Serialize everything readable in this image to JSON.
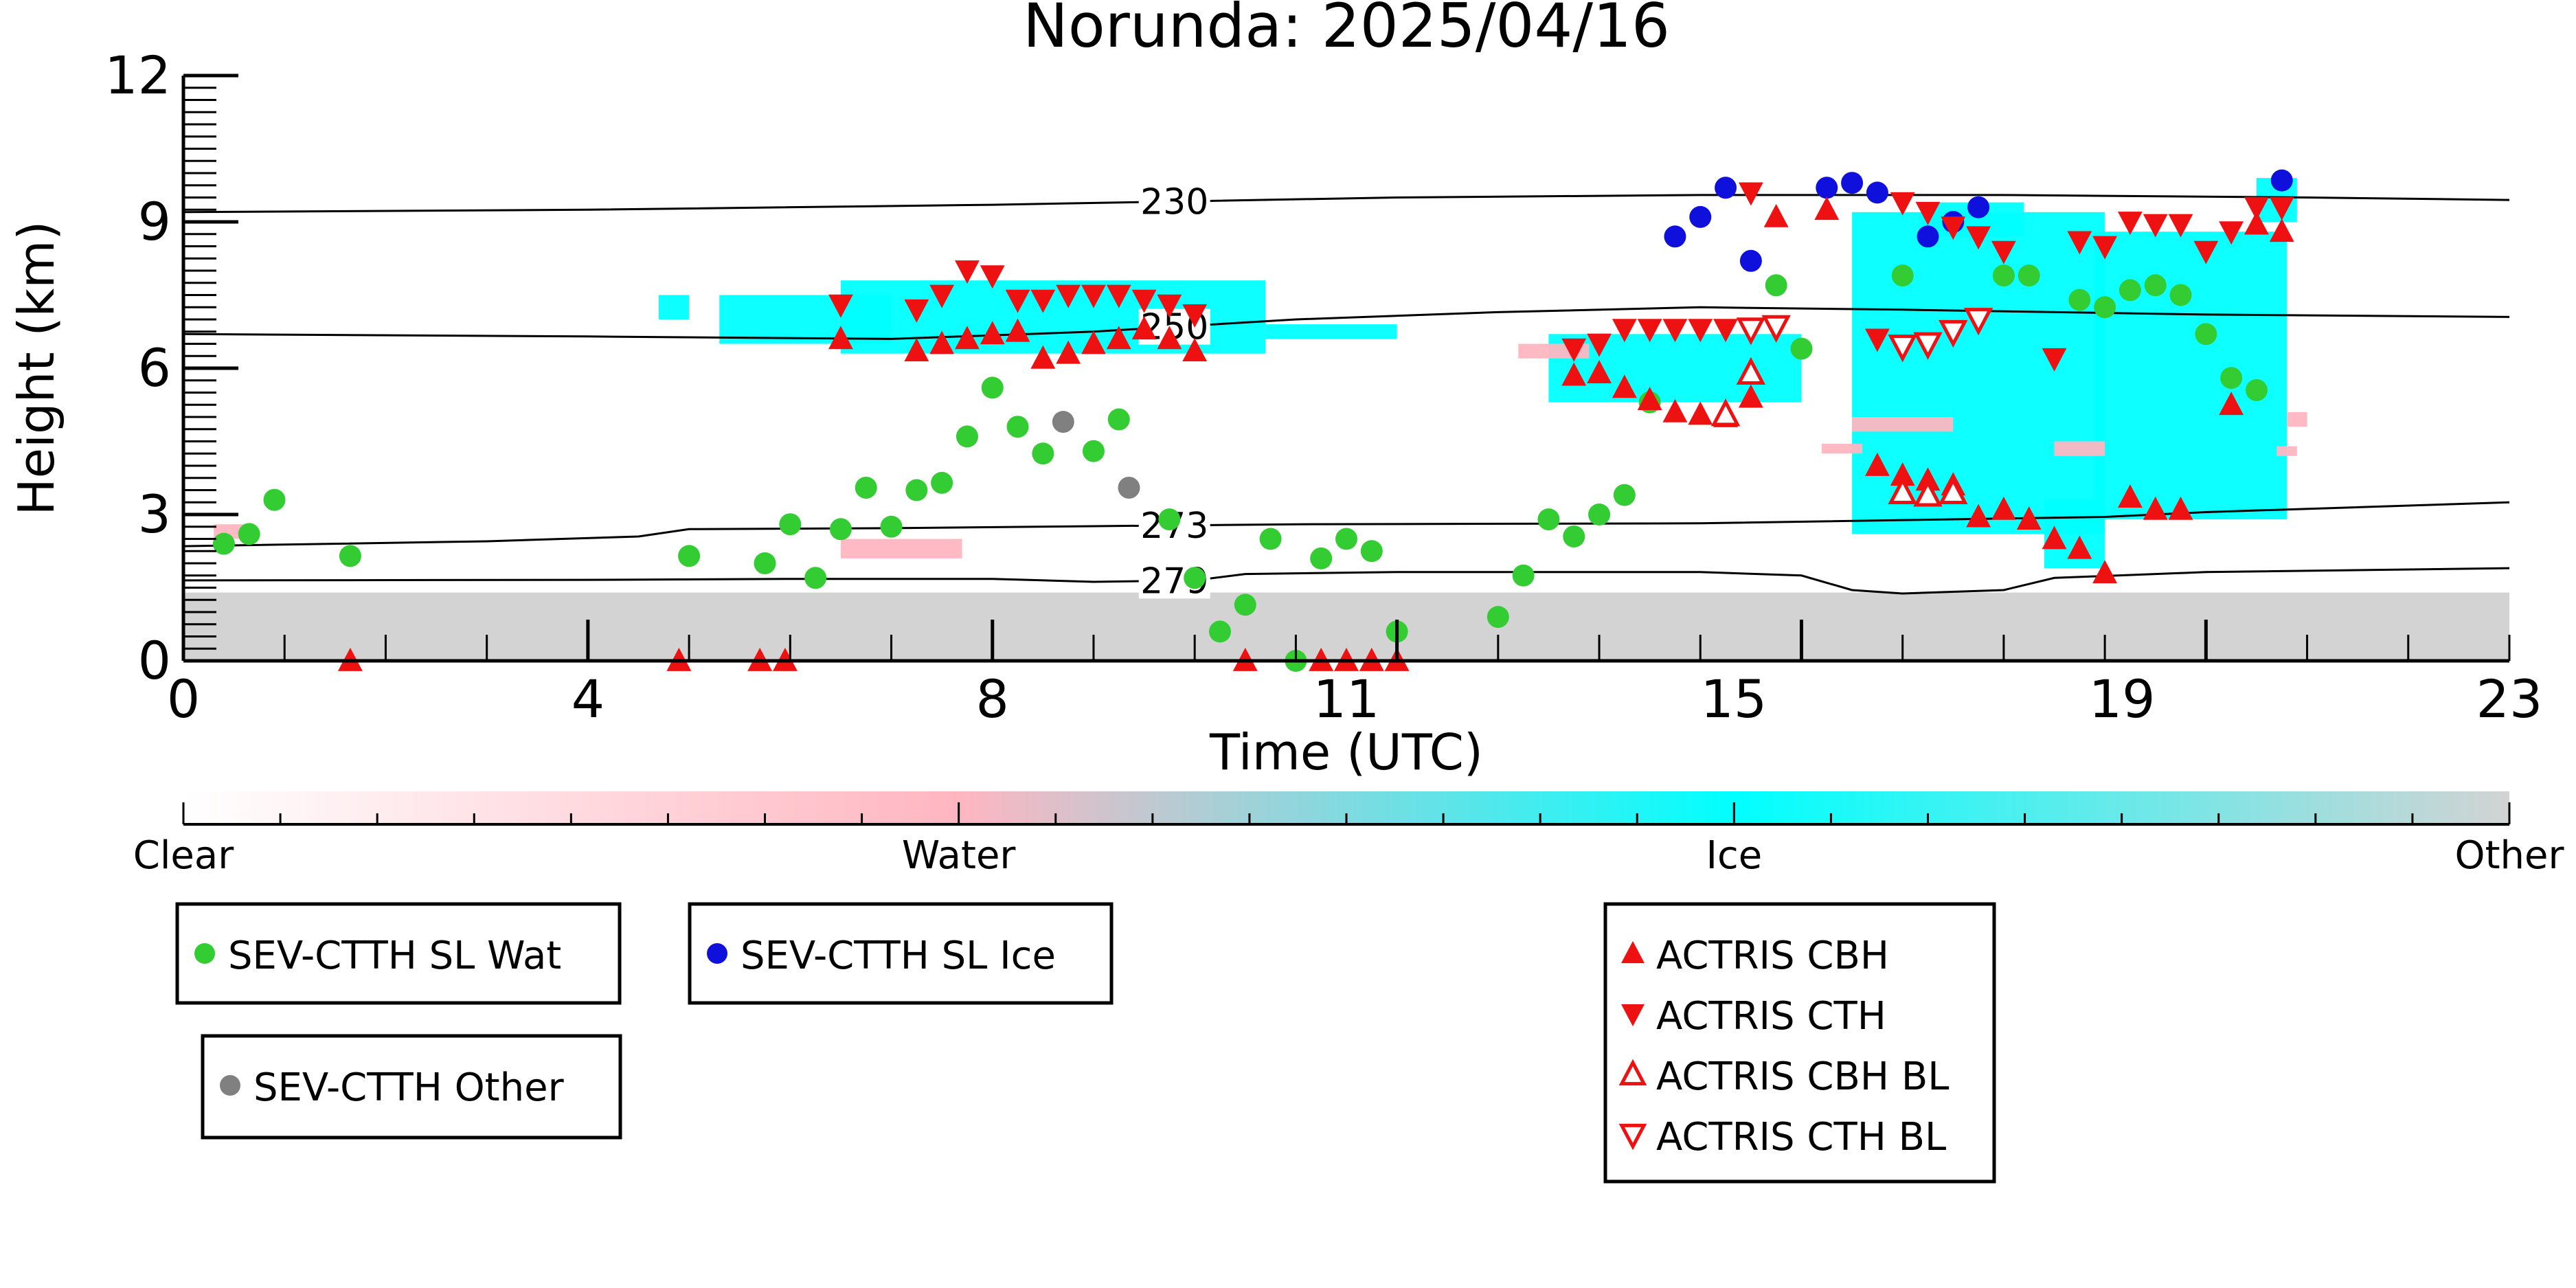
{
  "chart_data": {
    "type": "scatter",
    "title": "Norunda: 2025/04/16",
    "xlabel": "Time (UTC)",
    "ylabel": "Height (km)",
    "xlim": [
      0,
      23
    ],
    "ylim": [
      0,
      12
    ],
    "x_ticks": [
      "0",
      "4",
      "8",
      "11",
      "15",
      "19",
      "23"
    ],
    "x_tick_values": [
      0,
      4,
      8,
      11.5,
      15.33,
      19.17,
      23
    ],
    "y_ticks": [
      "0",
      "3",
      "6",
      "9",
      "12"
    ],
    "y_tick_values": [
      0,
      3,
      6,
      9,
      12
    ],
    "grid": false,
    "isotherms": [
      {
        "label": "230",
        "label_x": 9.8,
        "points": [
          [
            0,
            9.2
          ],
          [
            4,
            9.25
          ],
          [
            8,
            9.35
          ],
          [
            12,
            9.5
          ],
          [
            15,
            9.55
          ],
          [
            18,
            9.55
          ],
          [
            21,
            9.5
          ],
          [
            23,
            9.45
          ]
        ]
      },
      {
        "label": "250",
        "label_x": 9.8,
        "points": [
          [
            0,
            6.7
          ],
          [
            4,
            6.65
          ],
          [
            7,
            6.6
          ],
          [
            9,
            6.75
          ],
          [
            11,
            7.0
          ],
          [
            13,
            7.15
          ],
          [
            15,
            7.25
          ],
          [
            17,
            7.2
          ],
          [
            20,
            7.1
          ],
          [
            23,
            7.05
          ]
        ]
      },
      {
        "label": "273",
        "label_x": 9.8,
        "points": [
          [
            0,
            2.35
          ],
          [
            3,
            2.45
          ],
          [
            4.5,
            2.55
          ],
          [
            5,
            2.7
          ],
          [
            7,
            2.72
          ],
          [
            9,
            2.76
          ],
          [
            11,
            2.8
          ],
          [
            15,
            2.82
          ],
          [
            19,
            2.95
          ],
          [
            20,
            3.05
          ],
          [
            23,
            3.25
          ]
        ]
      },
      {
        "label": "279",
        "label_x": 9.8,
        "points": [
          [
            0,
            1.65
          ],
          [
            4,
            1.66
          ],
          [
            6,
            1.68
          ],
          [
            8,
            1.68
          ],
          [
            9,
            1.62
          ],
          [
            10,
            1.65
          ],
          [
            10.5,
            1.78
          ],
          [
            12,
            1.82
          ],
          [
            15,
            1.82
          ],
          [
            16,
            1.75
          ],
          [
            16.5,
            1.45
          ],
          [
            17,
            1.38
          ],
          [
            18,
            1.45
          ],
          [
            18.5,
            1.7
          ],
          [
            20,
            1.82
          ],
          [
            23,
            1.9
          ]
        ]
      }
    ],
    "series": [
      {
        "name": "SEV-CTTH SL Wat",
        "color": "#33cc33",
        "marker": "circle",
        "points": [
          [
            0.4,
            2.4
          ],
          [
            0.65,
            2.6
          ],
          [
            0.9,
            3.3
          ],
          [
            1.65,
            2.15
          ],
          [
            5.0,
            2.15
          ],
          [
            5.75,
            2.0
          ],
          [
            6.0,
            2.8
          ],
          [
            6.25,
            1.7
          ],
          [
            6.5,
            2.7
          ],
          [
            6.75,
            3.55
          ],
          [
            7.0,
            2.75
          ],
          [
            7.25,
            3.5
          ],
          [
            7.5,
            3.65
          ],
          [
            7.75,
            4.6
          ],
          [
            8.0,
            5.6
          ],
          [
            8.25,
            4.8
          ],
          [
            8.5,
            4.25
          ],
          [
            9.0,
            4.3
          ],
          [
            9.25,
            4.95
          ],
          [
            9.75,
            2.9
          ],
          [
            10.0,
            1.7
          ],
          [
            10.25,
            0.6
          ],
          [
            10.5,
            1.15
          ],
          [
            10.75,
            2.5
          ],
          [
            11.0,
            0.0
          ],
          [
            11.25,
            2.1
          ],
          [
            11.5,
            2.5
          ],
          [
            11.75,
            2.25
          ],
          [
            12.0,
            0.6
          ],
          [
            13.0,
            0.9
          ],
          [
            13.25,
            1.75
          ],
          [
            13.5,
            2.9
          ],
          [
            13.75,
            2.55
          ],
          [
            14.0,
            3.0
          ],
          [
            14.25,
            3.4
          ],
          [
            14.5,
            5.3
          ],
          [
            15.75,
            7.7
          ],
          [
            16.0,
            6.4
          ],
          [
            17.0,
            7.9
          ],
          [
            18.0,
            7.9
          ],
          [
            18.25,
            7.9
          ],
          [
            18.75,
            7.4
          ],
          [
            19.0,
            7.25
          ],
          [
            19.25,
            7.6
          ],
          [
            19.5,
            7.7
          ],
          [
            19.75,
            7.5
          ],
          [
            20.0,
            6.7
          ],
          [
            20.25,
            5.8
          ],
          [
            20.5,
            5.55
          ]
        ]
      },
      {
        "name": "SEV-CTTH SL Ice",
        "color": "#1010dd",
        "marker": "circle",
        "points": [
          [
            14.75,
            8.7
          ],
          [
            15.0,
            9.1
          ],
          [
            15.25,
            9.7
          ],
          [
            15.5,
            8.2
          ],
          [
            16.25,
            9.7
          ],
          [
            16.5,
            9.8
          ],
          [
            16.75,
            9.6
          ],
          [
            17.25,
            8.7
          ],
          [
            17.5,
            9.0
          ],
          [
            17.75,
            9.3
          ],
          [
            20.75,
            9.85
          ]
        ]
      },
      {
        "name": "SEV-CTTH Other",
        "color": "#808080",
        "marker": "circle",
        "points": [
          [
            8.7,
            4.9
          ],
          [
            9.35,
            3.55
          ]
        ]
      },
      {
        "name": "ACTRIS CBH",
        "color": "#ee1111",
        "marker": "triangle-up",
        "filled": true,
        "points": [
          [
            1.65,
            0.0
          ],
          [
            4.9,
            0.0
          ],
          [
            5.7,
            0.0
          ],
          [
            5.95,
            0.0
          ],
          [
            6.5,
            6.6
          ],
          [
            7.25,
            6.35
          ],
          [
            7.5,
            6.5
          ],
          [
            7.75,
            6.6
          ],
          [
            8.0,
            6.7
          ],
          [
            8.25,
            6.75
          ],
          [
            8.5,
            6.2
          ],
          [
            8.75,
            6.3
          ],
          [
            9.0,
            6.5
          ],
          [
            9.25,
            6.6
          ],
          [
            9.5,
            6.8
          ],
          [
            9.75,
            6.6
          ],
          [
            10.0,
            6.35
          ],
          [
            10.5,
            0.0
          ],
          [
            11.25,
            0.0
          ],
          [
            11.5,
            0.0
          ],
          [
            11.75,
            0.0
          ],
          [
            12.0,
            0.0
          ],
          [
            13.75,
            5.85
          ],
          [
            14.0,
            5.9
          ],
          [
            14.25,
            5.6
          ],
          [
            14.5,
            5.35
          ],
          [
            14.75,
            5.1
          ],
          [
            15.0,
            5.05
          ],
          [
            15.25,
            5.0
          ],
          [
            15.5,
            5.4
          ],
          [
            15.75,
            9.1
          ],
          [
            16.25,
            9.25
          ],
          [
            16.75,
            4.0
          ],
          [
            17.0,
            3.8
          ],
          [
            17.25,
            3.7
          ],
          [
            17.5,
            3.6
          ],
          [
            17.75,
            2.95
          ],
          [
            18.0,
            3.1
          ],
          [
            18.25,
            2.9
          ],
          [
            18.5,
            2.5
          ],
          [
            18.75,
            2.3
          ],
          [
            19.0,
            1.8
          ],
          [
            19.25,
            3.35
          ],
          [
            19.5,
            3.1
          ],
          [
            19.75,
            3.1
          ],
          [
            20.25,
            5.25
          ],
          [
            20.5,
            8.95
          ],
          [
            20.75,
            8.8
          ]
        ]
      },
      {
        "name": "ACTRIS CTH",
        "color": "#ee1111",
        "marker": "triangle-down",
        "filled": true,
        "points": [
          [
            6.5,
            7.3
          ],
          [
            7.25,
            7.2
          ],
          [
            7.5,
            7.5
          ],
          [
            7.75,
            8.0
          ],
          [
            8.0,
            7.9
          ],
          [
            8.25,
            7.4
          ],
          [
            8.5,
            7.4
          ],
          [
            8.75,
            7.5
          ],
          [
            9.0,
            7.5
          ],
          [
            9.25,
            7.5
          ],
          [
            9.5,
            7.4
          ],
          [
            9.75,
            7.3
          ],
          [
            10.0,
            7.1
          ],
          [
            13.75,
            6.4
          ],
          [
            14.0,
            6.5
          ],
          [
            14.25,
            6.8
          ],
          [
            14.5,
            6.8
          ],
          [
            14.75,
            6.8
          ],
          [
            15.0,
            6.8
          ],
          [
            15.25,
            6.8
          ],
          [
            15.5,
            9.6
          ],
          [
            15.75,
            6.8
          ],
          [
            16.75,
            6.6
          ],
          [
            17.0,
            9.4
          ],
          [
            17.25,
            9.2
          ],
          [
            17.5,
            8.9
          ],
          [
            17.75,
            8.7
          ],
          [
            18.0,
            8.4
          ],
          [
            18.5,
            6.2
          ],
          [
            18.75,
            8.6
          ],
          [
            19.0,
            8.5
          ],
          [
            19.25,
            9.0
          ],
          [
            19.5,
            8.95
          ],
          [
            19.75,
            8.95
          ],
          [
            20.0,
            8.4
          ],
          [
            20.25,
            8.8
          ],
          [
            20.5,
            9.3
          ],
          [
            20.75,
            9.3
          ]
        ]
      },
      {
        "name": "ACTRIS CBH BL",
        "color": "#ee1111",
        "marker": "triangle-up",
        "filled": false,
        "points": [
          [
            15.25,
            5.05
          ],
          [
            15.5,
            5.9
          ],
          [
            17.0,
            3.45
          ],
          [
            17.25,
            3.4
          ],
          [
            17.5,
            3.45
          ]
        ]
      },
      {
        "name": "ACTRIS CTH BL",
        "color": "#ee1111",
        "marker": "triangle-down",
        "filled": false,
        "points": [
          [
            15.5,
            6.8
          ],
          [
            15.75,
            6.85
          ],
          [
            17.0,
            6.45
          ],
          [
            17.25,
            6.5
          ],
          [
            17.5,
            6.75
          ],
          [
            17.75,
            7.0
          ]
        ]
      }
    ],
    "background_classes": [
      {
        "class": "Ice",
        "regions": [
          [
            4.7,
            5.0,
            7.0,
            7.5
          ],
          [
            5.3,
            7.0,
            6.5,
            7.5
          ],
          [
            6.5,
            10.7,
            6.3,
            7.8
          ],
          [
            10.7,
            12.0,
            6.6,
            6.9
          ],
          [
            13.5,
            16.0,
            5.3,
            6.7
          ],
          [
            16.5,
            19.0,
            2.6,
            9.2
          ],
          [
            17.2,
            18.2,
            8.7,
            9.4
          ],
          [
            18.9,
            20.8,
            2.9,
            8.8
          ],
          [
            18.4,
            19.0,
            1.9,
            3.3
          ],
          [
            20.5,
            20.9,
            9.0,
            9.9
          ]
        ]
      },
      {
        "class": "Water",
        "regions": [
          [
            0.3,
            0.6,
            2.5,
            2.8
          ],
          [
            6.5,
            7.7,
            2.1,
            2.5
          ],
          [
            13.2,
            13.9,
            6.2,
            6.5
          ],
          [
            16.5,
            17.5,
            4.7,
            5.0
          ],
          [
            16.2,
            16.6,
            4.25,
            4.45
          ],
          [
            18.5,
            19.0,
            4.2,
            4.5
          ],
          [
            20.7,
            20.9,
            4.2,
            4.4
          ],
          [
            20.8,
            21.0,
            4.8,
            5.1
          ]
        ]
      },
      {
        "class": "Other",
        "regions": [
          [
            0,
            23,
            0,
            1.4
          ]
        ]
      }
    ],
    "colorbar": {
      "labels": [
        "Clear",
        "Water",
        "Ice",
        "Other"
      ],
      "stops": [
        "#ffffff",
        "#ffb6c1",
        "#00ffff",
        "#d3d3d3"
      ]
    },
    "legends": [
      {
        "entries": [
          "SEV-CTTH SL Wat"
        ],
        "placement": "lower-left"
      },
      {
        "entries": [
          "SEV-CTTH SL Ice"
        ],
        "placement": "lower-center-left"
      },
      {
        "entries": [
          "SEV-CTTH Other"
        ],
        "placement": "lower-left"
      },
      {
        "entries": [
          "ACTRIS CBH",
          "ACTRIS CTH",
          "ACTRIS CBH BL",
          "ACTRIS CTH BL"
        ],
        "placement": "lower-right"
      }
    ]
  }
}
